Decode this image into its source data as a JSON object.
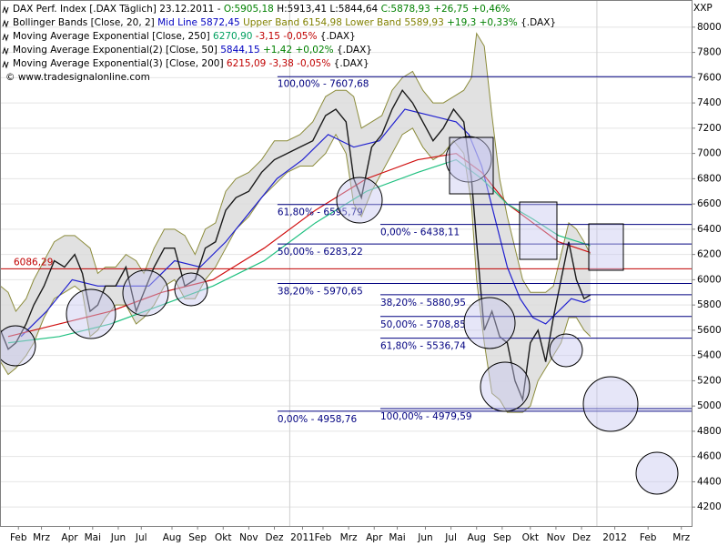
{
  "chart_data": {
    "type": "line",
    "header": [
      [
        {
          "text": "DAX Perf. Index [.DAX  Täglich] 23.12.2011 - ",
          "color": "#000000"
        },
        {
          "text": "O:5905,18",
          "color": "#008000"
        },
        {
          "text": " H:5913,41 L:5844,64 ",
          "color": "#000000"
        },
        {
          "text": "C:5878,93 +26,75 +0,46%",
          "color": "#008000"
        }
      ],
      [
        {
          "text": "Bollinger Bands [Close, 20, 2] ",
          "color": "#000000"
        },
        {
          "text": "Mid Line 5872,45",
          "color": "#0000c0"
        },
        {
          "text": " Upper Band 6154,98 Lower Band 5589,93",
          "color": "#808000"
        },
        {
          "text": " +19,3 +0,33%",
          "color": "#008000"
        },
        {
          "text": " {.DAX}",
          "color": "#000000"
        }
      ],
      [
        {
          "text": "Moving Average Exponential [Close, 250] ",
          "color": "#000000"
        },
        {
          "text": "6270,90",
          "color": "#00a060"
        },
        {
          "text": " -3,15 -0,05%",
          "color": "#c00000"
        },
        {
          "text": " {.DAX}",
          "color": "#000000"
        }
      ],
      [
        {
          "text": "Moving Average Exponential(2) [Close, 50] ",
          "color": "#000000"
        },
        {
          "text": "5844,15",
          "color": "#0000c0"
        },
        {
          "text": " +1,42 +0,02%",
          "color": "#008000"
        },
        {
          "text": " {.DAX}",
          "color": "#000000"
        }
      ],
      [
        {
          "text": "Moving Average Exponential(3) [Close, 200] ",
          "color": "#000000"
        },
        {
          "text": "6215,09",
          "color": "#c00000"
        },
        {
          "text": " -3,38 -0,05%",
          "color": "#c00000"
        },
        {
          "text": " {.DAX}",
          "color": "#000000"
        }
      ],
      [
        {
          "text": "© www.tradesignalonline.com",
          "color": "#000000"
        }
      ]
    ],
    "axis_unit": "XXP",
    "xlim": [
      0.68,
      27.7
    ],
    "ylim": [
      4050,
      8215
    ],
    "yticks": [
      4200,
      4400,
      4600,
      4800,
      5000,
      5200,
      5400,
      5600,
      5800,
      6000,
      6200,
      6400,
      6600,
      6800,
      7000,
      7200,
      7400,
      7600,
      7800,
      8000
    ],
    "xticks": [
      {
        "value": 1.4,
        "label": "Feb"
      },
      {
        "value": 2.3,
        "label": "Mrz"
      },
      {
        "value": 3.4,
        "label": "Apr"
      },
      {
        "value": 4.3,
        "label": "Mai"
      },
      {
        "value": 5.3,
        "label": "Jun"
      },
      {
        "value": 6.2,
        "label": "Jul"
      },
      {
        "value": 7.4,
        "label": "Aug"
      },
      {
        "value": 8.4,
        "label": "Sep"
      },
      {
        "value": 9.4,
        "label": "Okt"
      },
      {
        "value": 10.4,
        "label": "Nov"
      },
      {
        "value": 11.4,
        "label": "Dez"
      },
      {
        "value": 12.5,
        "label": "2011"
      },
      {
        "value": 13.3,
        "label": "Feb"
      },
      {
        "value": 14.3,
        "label": "Mrz"
      },
      {
        "value": 15.3,
        "label": "Apr"
      },
      {
        "value": 16.2,
        "label": "Mai"
      },
      {
        "value": 17.3,
        "label": "Jun"
      },
      {
        "value": 18.3,
        "label": "Jul"
      },
      {
        "value": 19.3,
        "label": "Aug"
      },
      {
        "value": 20.3,
        "label": "Sep"
      },
      {
        "value": 21.4,
        "label": "Okt"
      },
      {
        "value": 22.4,
        "label": "Nov"
      },
      {
        "value": 23.4,
        "label": "Dez"
      },
      {
        "value": 24.7,
        "label": "2012"
      },
      {
        "value": 26.0,
        "label": "Feb"
      },
      {
        "value": 27.3,
        "label": "Mrz"
      }
    ],
    "x_gridlines": [
      12,
      24
    ],
    "price": {
      "color": "#1a1a1a",
      "x": [
        0.7,
        1.0,
        1.3,
        1.7,
        2.0,
        2.4,
        2.8,
        3.2,
        3.6,
        3.9,
        4.2,
        4.5,
        4.8,
        5.2,
        5.6,
        6.0,
        6.3,
        6.7,
        7.1,
        7.5,
        7.9,
        8.3,
        8.7,
        9.1,
        9.5,
        9.9,
        10.4,
        10.9,
        11.4,
        11.9,
        12.4,
        12.9,
        13.4,
        13.8,
        14.2,
        14.5,
        14.8,
        15.2,
        15.6,
        16.0,
        16.4,
        16.8,
        17.2,
        17.6,
        18.0,
        18.4,
        18.8,
        19.1,
        19.3,
        19.6,
        19.9,
        20.2,
        20.5,
        20.8,
        21.1,
        21.4,
        21.7,
        22.0,
        22.3,
        22.6,
        22.9,
        23.2,
        23.5,
        23.75
      ],
      "values": [
        5600,
        5450,
        5500,
        5650,
        5800,
        5950,
        6150,
        6100,
        6200,
        6050,
        5750,
        5800,
        5950,
        5950,
        6100,
        5750,
        5900,
        6100,
        6250,
        6250,
        5950,
        6000,
        6250,
        6300,
        6550,
        6650,
        6700,
        6850,
        6950,
        7000,
        7050,
        7100,
        7300,
        7350,
        7250,
        6800,
        6650,
        7050,
        7150,
        7350,
        7500,
        7400,
        7250,
        7100,
        7200,
        7350,
        7250,
        6800,
        6300,
        5600,
        5750,
        5550,
        5500,
        5200,
        5050,
        5500,
        5600,
        5350,
        5700,
        6000,
        6300,
        6000,
        5850,
        5880
      ],
      "upper": [
        5950,
        5900,
        5750,
        5850,
        6000,
        6150,
        6300,
        6350,
        6350,
        6300,
        6250,
        6050,
        6100,
        6100,
        6200,
        6150,
        6050,
        6250,
        6400,
        6400,
        6350,
        6200,
        6400,
        6450,
        6700,
        6800,
        6850,
        6950,
        7100,
        7100,
        7150,
        7250,
        7450,
        7500,
        7500,
        7450,
        7200,
        7250,
        7300,
        7500,
        7600,
        7650,
        7500,
        7400,
        7400,
        7450,
        7500,
        7600,
        7950,
        7850,
        7300,
        6800,
        6500,
        6250,
        6000,
        5900,
        5900,
        5900,
        5950,
        6200,
        6450,
        6400,
        6300,
        6200
      ],
      "lower": [
        5350,
        5250,
        5300,
        5400,
        5500,
        5700,
        5850,
        5900,
        5950,
        5900,
        5550,
        5600,
        5700,
        5800,
        5800,
        5650,
        5700,
        5800,
        5950,
        6000,
        5850,
        5850,
        6000,
        6100,
        6250,
        6400,
        6500,
        6650,
        6750,
        6850,
        6900,
        6900,
        7000,
        7150,
        7000,
        6600,
        6500,
        6700,
        6850,
        7000,
        7150,
        7200,
        7050,
        6950,
        7000,
        7100,
        7000,
        6600,
        6000,
        5500,
        5100,
        5050,
        4950,
        4950,
        4950,
        5000,
        5200,
        5300,
        5400,
        5500,
        5700,
        5700,
        5600,
        5550
      ],
      "band_fill": "#d9d9d9",
      "band_color": "#8c8c3c"
    },
    "series": [
      {
        "name": "Moving Average Exponential(2) [Close, 50]",
        "color": "#2020d0",
        "x": [
          1.5,
          2.5,
          3.5,
          4.5,
          5.5,
          6.5,
          7.5,
          8.5,
          9.5,
          10.5,
          11.5,
          12.5,
          13.5,
          14.5,
          15.5,
          16.5,
          17.5,
          18.5,
          19.0,
          19.5,
          20.0,
          20.5,
          21.0,
          21.5,
          22.0,
          22.5,
          23.0,
          23.5,
          23.75
        ],
        "values": [
          5550,
          5750,
          6000,
          5950,
          5950,
          5950,
          6150,
          6100,
          6300,
          6550,
          6800,
          6950,
          7150,
          7050,
          7100,
          7350,
          7300,
          7250,
          7150,
          6900,
          6500,
          6100,
          5850,
          5700,
          5650,
          5750,
          5850,
          5820,
          5844
        ]
      },
      {
        "name": "Moving Average Exponential(3) [Close, 200]",
        "color": "#d01010",
        "x": [
          1,
          3,
          5,
          7,
          9,
          11,
          13,
          15,
          17,
          18.5,
          19.5,
          20.5,
          21.5,
          22.5,
          23.75
        ],
        "values": [
          5550,
          5650,
          5750,
          5900,
          6000,
          6250,
          6550,
          6800,
          6950,
          7000,
          6850,
          6600,
          6450,
          6300,
          6215
        ]
      },
      {
        "name": "Moving Average Exponential [Close, 250]",
        "color": "#20c080",
        "x": [
          1,
          3,
          5,
          7,
          9,
          11,
          13,
          15,
          17,
          18.5,
          19.5,
          20.5,
          21.5,
          22.5,
          23.75
        ],
        "values": [
          5500,
          5550,
          5650,
          5800,
          5950,
          6150,
          6450,
          6700,
          6850,
          6950,
          6800,
          6600,
          6480,
          6350,
          6270
        ]
      }
    ],
    "reference_line": {
      "value": 6086.29,
      "label": "6086,29",
      "color": "#c00000"
    },
    "fib_levels": [
      {
        "value": 7607.68,
        "label": "100,00% - 7607,68",
        "x_start": 11.52,
        "label_pos": "above"
      },
      {
        "value": 6595.79,
        "label": "61,80% - 6595,79",
        "x_start": 11.52,
        "label_pos": "below"
      },
      {
        "value": 6283.22,
        "label": "50,00% - 6283,22",
        "x_start": 11.52,
        "label_pos": "below"
      },
      {
        "value": 5970.65,
        "label": "38,20% - 5970,65",
        "x_start": 11.52,
        "label_pos": "below"
      },
      {
        "value": 4958.76,
        "label": "0,00% - 4958,76",
        "x_start": 11.52,
        "label_pos": "below"
      },
      {
        "value": 6438.11,
        "label": "0,00% - 6438,11",
        "x_start": 15.54,
        "label_pos": "below"
      },
      {
        "value": 5880.95,
        "label": "38,20% - 5880,95",
        "x_start": 15.54,
        "label_pos": "below"
      },
      {
        "value": 5708.85,
        "label": "50,00% - 5708,85",
        "x_start": 15.54,
        "label_pos": "below"
      },
      {
        "value": 5536.74,
        "label": "61,80% - 5536,74",
        "x_start": 15.54,
        "label_pos": "below"
      },
      {
        "value": 4979.59,
        "label": "100,00% - 4979,59",
        "x_start": 15.54,
        "label_pos": "below"
      }
    ],
    "fib_color": "#000080"
  }
}
